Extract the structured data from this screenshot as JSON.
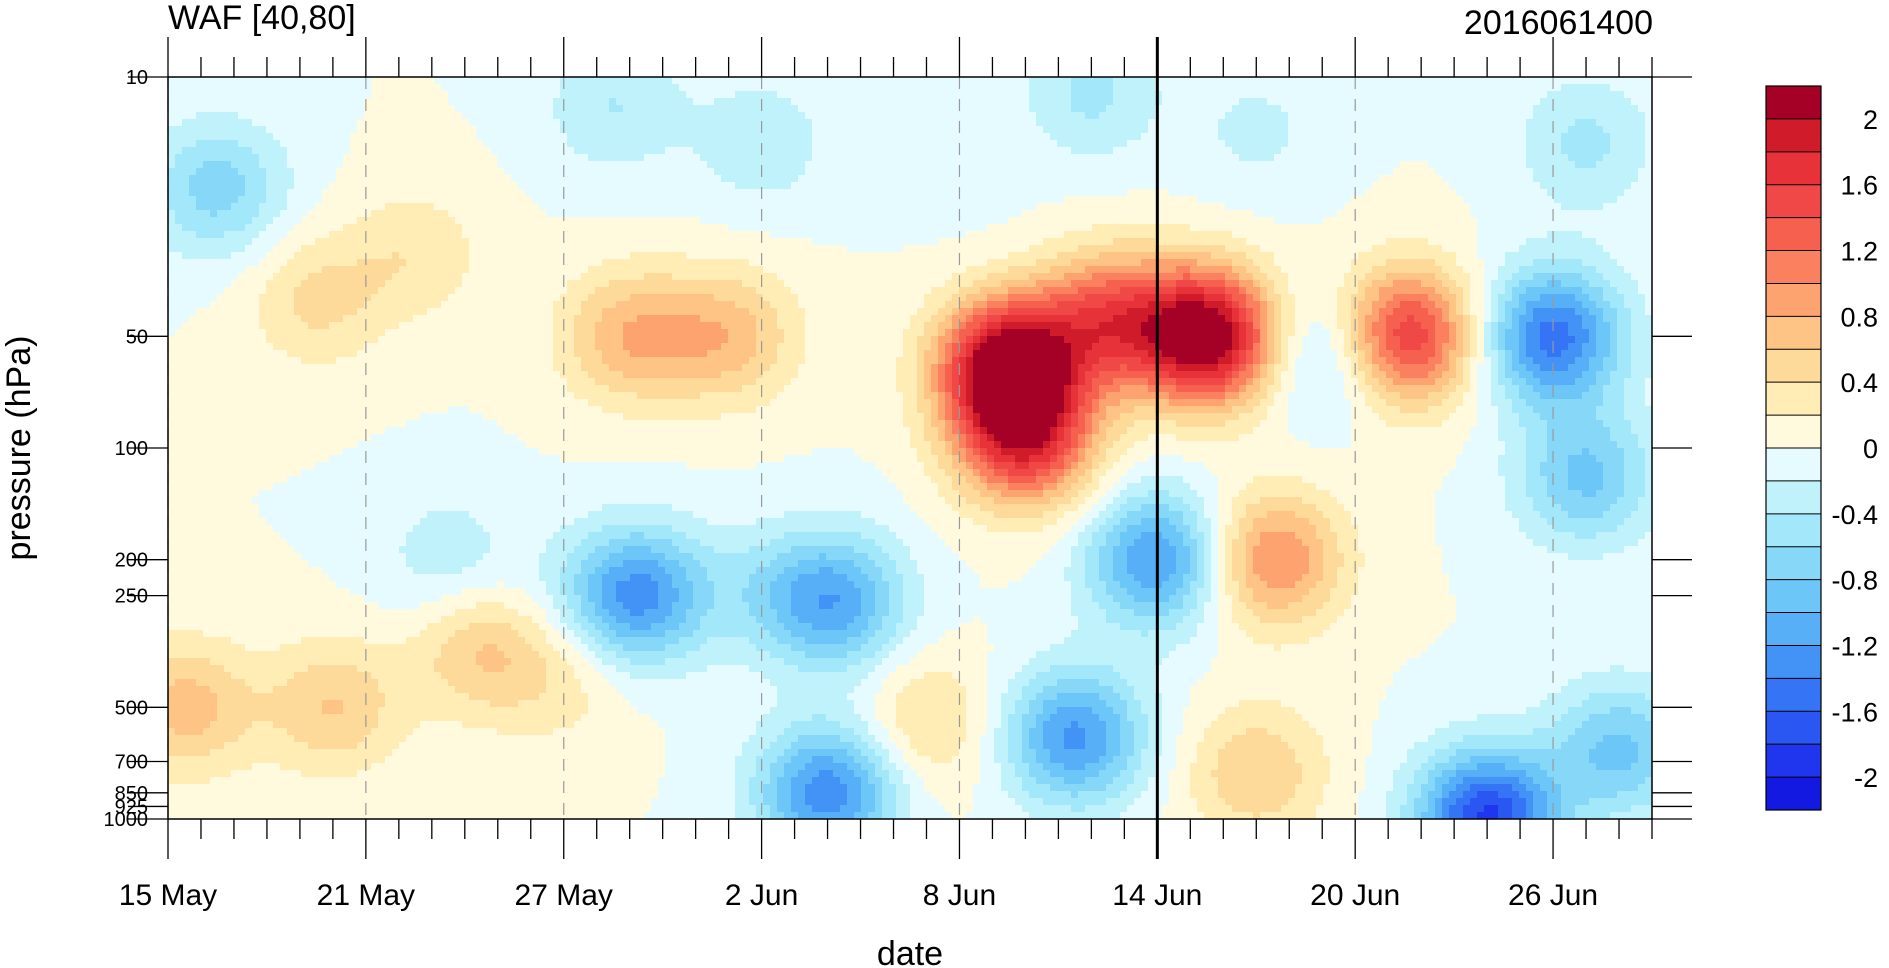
{
  "chart_data": {
    "type": "heatmap",
    "title_left": "WAF [40,80]",
    "title_right": "2016061400",
    "xlabel": "date",
    "ylabel": "pressure (hPa)",
    "x_tick_labels": [
      "15 May",
      "21 May",
      "27 May",
      "2 Jun",
      "8 Jun",
      "14 Jun",
      "20 Jun",
      "26 Jun"
    ],
    "x_tick_days": [
      0,
      6,
      12,
      18,
      24,
      30,
      36,
      42
    ],
    "x_range_days": [
      0,
      45
    ],
    "y_scale": "log",
    "y_tick_labels": [
      "10",
      "50",
      "100",
      "200",
      "250",
      "500",
      "700",
      "850",
      "925",
      "1000"
    ],
    "y_tick_values": [
      10,
      50,
      100,
      200,
      250,
      500,
      700,
      850,
      925,
      1000
    ],
    "y_range": [
      1000,
      10
    ],
    "current_date_day": 30,
    "colorbar": {
      "labels": [
        "2",
        "1.6",
        "1.2",
        "0.8",
        "0.4",
        "0",
        "-0.4",
        "-0.8",
        "-1.2",
        "-1.6",
        "-2"
      ],
      "levels": [
        2.2,
        2.0,
        1.8,
        1.6,
        1.4,
        1.2,
        1.0,
        0.8,
        0.6,
        0.4,
        0.2,
        0.0,
        -0.2,
        -0.4,
        -0.6,
        -0.8,
        -1.0,
        -1.2,
        -1.4,
        -1.6,
        -1.8,
        -2.0,
        -2.2
      ],
      "colors": [
        "#a50026",
        "#d01c2a",
        "#e8323a",
        "#f04747",
        "#f6604e",
        "#fb8060",
        "#fca36f",
        "#fdc486",
        "#fdd99a",
        "#ffedb5",
        "#fff9de",
        "#e6fbff",
        "#c0f2fb",
        "#a3e7fa",
        "#86d7f8",
        "#6cc6f7",
        "#56aff7",
        "#4392f6",
        "#3574f5",
        "#2a56f2",
        "#1f36ee",
        "#1419e2"
      ]
    },
    "features": [
      {
        "day": 1.5,
        "p": 20,
        "v": -0.7
      },
      {
        "day": 7.5,
        "p": 30,
        "v": 0.35
      },
      {
        "day": 13.5,
        "p": 12,
        "v": -0.4
      },
      {
        "day": 18,
        "p": 15,
        "v": -0.35
      },
      {
        "day": 24.5,
        "p": 22,
        "v": -0.05
      },
      {
        "day": 28,
        "p": 11,
        "v": -0.45
      },
      {
        "day": 33,
        "p": 14,
        "v": -0.25
      },
      {
        "day": 43,
        "p": 15,
        "v": -0.45
      },
      {
        "day": 14,
        "p": 50,
        "v": 0.75
      },
      {
        "day": 17,
        "p": 50,
        "v": 0.7
      },
      {
        "day": 25.5,
        "p": 60,
        "v": 2.3
      },
      {
        "day": 26,
        "p": 95,
        "v": 1.6
      },
      {
        "day": 28.5,
        "p": 45,
        "v": 1.3
      },
      {
        "day": 31.5,
        "p": 50,
        "v": 2.3
      },
      {
        "day": 35.3,
        "p": 55,
        "v": -0.65
      },
      {
        "day": 37.5,
        "p": 50,
        "v": 1.7
      },
      {
        "day": 42,
        "p": 50,
        "v": -1.5
      },
      {
        "day": 43,
        "p": 120,
        "v": -0.85
      },
      {
        "day": 30,
        "p": 200,
        "v": -1.25
      },
      {
        "day": 33.5,
        "p": 200,
        "v": 1.05
      },
      {
        "day": 14.3,
        "p": 250,
        "v": -1.25
      },
      {
        "day": 18.3,
        "p": 250,
        "v": -0.4
      },
      {
        "day": 17.5,
        "p": 300,
        "v": 0.05
      },
      {
        "day": 20.3,
        "p": 260,
        "v": -1.05
      },
      {
        "day": 27.5,
        "p": 600,
        "v": -1.25
      },
      {
        "day": 20,
        "p": 850,
        "v": -1.35
      },
      {
        "day": 5,
        "p": 500,
        "v": 0.6
      },
      {
        "day": 9.5,
        "p": 350,
        "v": 0.6
      },
      {
        "day": 12,
        "p": 420,
        "v": 0.3
      },
      {
        "day": 0.5,
        "p": 500,
        "v": 0.7
      },
      {
        "day": 23,
        "p": 550,
        "v": 0.45
      },
      {
        "day": 33,
        "p": 750,
        "v": 0.6
      },
      {
        "day": 40,
        "p": 1000,
        "v": -1.85
      },
      {
        "day": 44,
        "p": 650,
        "v": -0.85
      },
      {
        "day": 4.5,
        "p": 40,
        "v": 0.45
      },
      {
        "day": 8.5,
        "p": 200,
        "v": -0.35
      },
      {
        "day": 12.5,
        "p": 250,
        "v": -0.15
      }
    ]
  }
}
